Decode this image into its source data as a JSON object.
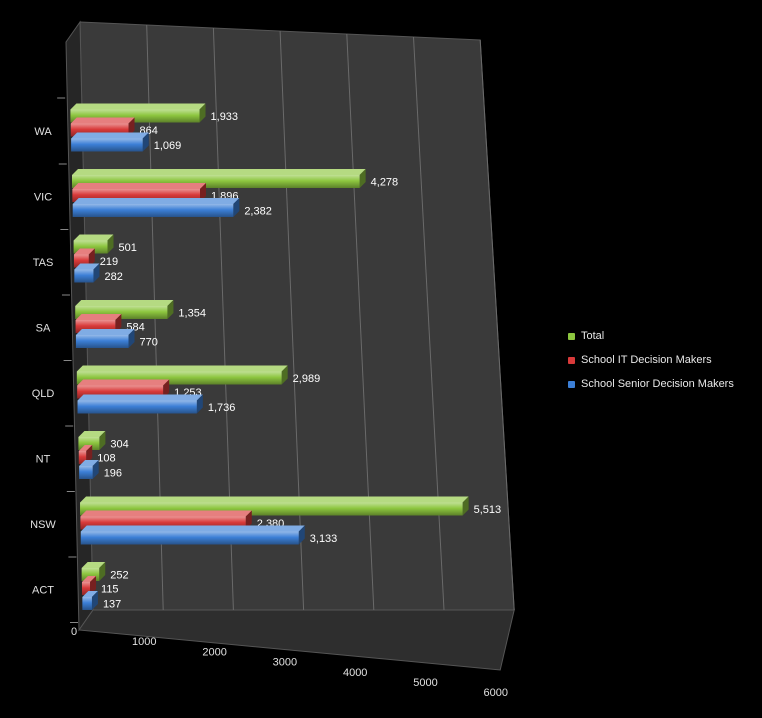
{
  "chart_data": {
    "type": "bar",
    "orientation": "horizontal",
    "categories": [
      "WA",
      "VIC",
      "TAS",
      "SA",
      "QLD",
      "NT",
      "NSW",
      "ACT"
    ],
    "series": [
      {
        "name": "Total",
        "color": "#8dc63f",
        "values": [
          1933,
          4278,
          501,
          1354,
          2989,
          304,
          5513,
          252
        ],
        "labels": [
          "1,933",
          "4,278",
          "501",
          "1,354",
          "2,989",
          "304",
          "5,513",
          "252"
        ]
      },
      {
        "name": "School IT Decision Makers",
        "color": "#d93a3a",
        "values": [
          864,
          1896,
          219,
          584,
          1253,
          108,
          2380,
          115
        ],
        "labels": [
          "864",
          "1,896",
          "219",
          "584",
          "1,253",
          "108",
          "2,380",
          "115"
        ]
      },
      {
        "name": "School Senior Decision Makers",
        "color": "#3c7fd6",
        "values": [
          1069,
          2382,
          282,
          770,
          1736,
          196,
          3133,
          137
        ],
        "labels": [
          "1,069",
          "2,382",
          "282",
          "770",
          "1,736",
          "196",
          "3,133",
          "137"
        ]
      }
    ],
    "x_ticks": [
      "0",
      "1000",
      "2000",
      "3000",
      "4000",
      "5000",
      "6000"
    ],
    "xlim": [
      0,
      6000
    ],
    "title": "",
    "xlabel": "",
    "ylabel": "",
    "grid": true,
    "legend_position": "right",
    "style": "3d"
  }
}
